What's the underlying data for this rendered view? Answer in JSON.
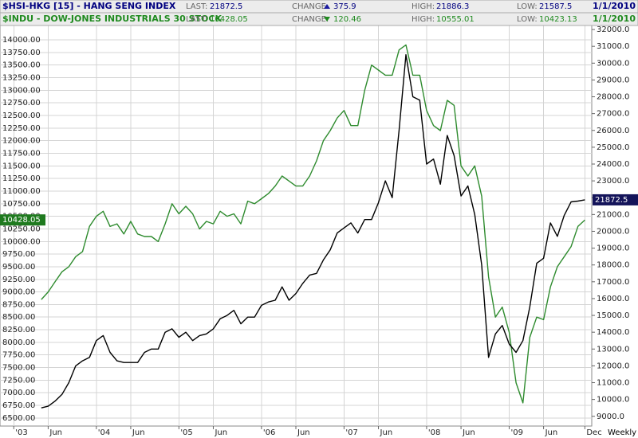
{
  "chart_data": {
    "type": "line",
    "frequency": "Weekly",
    "x": [
      "2003-05",
      "2003-06",
      "2003-07",
      "2003-08",
      "2003-09",
      "2003-10",
      "2003-11",
      "2003-12",
      "2004-01",
      "2004-02",
      "2004-03",
      "2004-04",
      "2004-05",
      "2004-06",
      "2004-07",
      "2004-08",
      "2004-09",
      "2004-10",
      "2004-11",
      "2004-12",
      "2005-01",
      "2005-02",
      "2005-03",
      "2005-04",
      "2005-05",
      "2005-06",
      "2005-07",
      "2005-08",
      "2005-09",
      "2005-10",
      "2005-11",
      "2005-12",
      "2006-01",
      "2006-02",
      "2006-03",
      "2006-04",
      "2006-05",
      "2006-06",
      "2006-07",
      "2006-08",
      "2006-09",
      "2006-10",
      "2006-11",
      "2006-12",
      "2007-01",
      "2007-02",
      "2007-03",
      "2007-04",
      "2007-05",
      "2007-06",
      "2007-07",
      "2007-08",
      "2007-09",
      "2007-10",
      "2007-11",
      "2007-12",
      "2008-01",
      "2008-02",
      "2008-03",
      "2008-04",
      "2008-05",
      "2008-06",
      "2008-07",
      "2008-08",
      "2008-09",
      "2008-10",
      "2008-11",
      "2008-12",
      "2009-01",
      "2009-02",
      "2009-03",
      "2009-04",
      "2009-05",
      "2009-06",
      "2009-07",
      "2009-08",
      "2009-09",
      "2009-10",
      "2009-11",
      "2009-12"
    ],
    "xlim": [
      "2002-11",
      "2010-01"
    ],
    "xticks": [
      {
        "value": "2003-01",
        "label": "'03"
      },
      {
        "value": "2003-06",
        "label": "Jun"
      },
      {
        "value": "2004-01",
        "label": "'04"
      },
      {
        "value": "2004-06",
        "label": "Jun"
      },
      {
        "value": "2005-01",
        "label": "'05"
      },
      {
        "value": "2005-06",
        "label": "Jun"
      },
      {
        "value": "2006-01",
        "label": "'06"
      },
      {
        "value": "2006-06",
        "label": "Jun"
      },
      {
        "value": "2007-01",
        "label": "'07"
      },
      {
        "value": "2007-06",
        "label": "Jun"
      },
      {
        "value": "2008-01",
        "label": "'08"
      },
      {
        "value": "2008-06",
        "label": "Jun"
      },
      {
        "value": "2009-01",
        "label": "'09"
      },
      {
        "value": "2009-06",
        "label": "Jun"
      },
      {
        "value": "2009-12",
        "label": "Dec"
      }
    ],
    "ylim": [
      6340,
      14285
    ],
    "yticks": [
      {
        "value": 6500,
        "label": "6500.00"
      },
      {
        "value": 6750,
        "label": "6750.00"
      },
      {
        "value": 7000,
        "label": "7000.00"
      },
      {
        "value": 7250,
        "label": "7250.00"
      },
      {
        "value": 7500,
        "label": "7500.00"
      },
      {
        "value": 7750,
        "label": "7750.00"
      },
      {
        "value": 8000,
        "label": "8000.00"
      },
      {
        "value": 8250,
        "label": "8250.00"
      },
      {
        "value": 8500,
        "label": "8500.00"
      },
      {
        "value": 8750,
        "label": "8750.00"
      },
      {
        "value": 9000,
        "label": "9000.00"
      },
      {
        "value": 9250,
        "label": "9250.00"
      },
      {
        "value": 9500,
        "label": "9500.00"
      },
      {
        "value": 9750,
        "label": "9750.00"
      },
      {
        "value": 10000,
        "label": "10000.00"
      },
      {
        "value": 10250,
        "label": "10250.00"
      },
      {
        "value": 10500,
        "label": "10500.00"
      },
      {
        "value": 10750,
        "label": "10750.00"
      },
      {
        "value": 11000,
        "label": "11000.00"
      },
      {
        "value": 11250,
        "label": "11250.00"
      },
      {
        "value": 11500,
        "label": "11500.00"
      },
      {
        "value": 11750,
        "label": "11750.00"
      },
      {
        "value": 12000,
        "label": "12000.00"
      },
      {
        "value": 12250,
        "label": "12250.00"
      },
      {
        "value": 12500,
        "label": "12500.00"
      },
      {
        "value": 12750,
        "label": "12750.00"
      },
      {
        "value": 13000,
        "label": "13000.00"
      },
      {
        "value": 13250,
        "label": "13250.00"
      },
      {
        "value": 13500,
        "label": "13500.00"
      },
      {
        "value": 13750,
        "label": "13750.00"
      },
      {
        "value": 14000,
        "label": "14000.00"
      }
    ],
    "y2lim": [
      8420,
      32240
    ],
    "y2ticks": [
      {
        "value": 9000,
        "label": "9000.0"
      },
      {
        "value": 10000,
        "label": "10000.0"
      },
      {
        "value": 11000,
        "label": "11000.0"
      },
      {
        "value": 12000,
        "label": "12000.0"
      },
      {
        "value": 13000,
        "label": "13000.0"
      },
      {
        "value": 14000,
        "label": "14000.0"
      },
      {
        "value": 15000,
        "label": "15000.0"
      },
      {
        "value": 16000,
        "label": "16000.0"
      },
      {
        "value": 17000,
        "label": "17000.0"
      },
      {
        "value": 18000,
        "label": "18000.0"
      },
      {
        "value": 19000,
        "label": "19000.0"
      },
      {
        "value": 20000,
        "label": "20000.0"
      },
      {
        "value": 21000,
        "label": "21000.0"
      },
      {
        "value": 22000,
        "label": "22000.0"
      },
      {
        "value": 23000,
        "label": "23000.0"
      },
      {
        "value": 24000,
        "label": "24000.0"
      },
      {
        "value": 25000,
        "label": "25000.0"
      },
      {
        "value": 26000,
        "label": "26000.0"
      },
      {
        "value": 27000,
        "label": "27000.0"
      },
      {
        "value": 28000,
        "label": "28000.0"
      },
      {
        "value": 29000,
        "label": "29000.0"
      },
      {
        "value": 30000,
        "label": "30000.0"
      },
      {
        "value": 31000,
        "label": "31000.0"
      },
      {
        "value": 32000,
        "label": "32000.0"
      }
    ],
    "grid": true,
    "series": [
      {
        "name": "$HSI-HKG [15] - HANG SENG INDEX",
        "color": "#000000",
        "axis": "y2",
        "tag_color": "#14145a",
        "quote": {
          "last_label": "LAST:",
          "last": 21872.5,
          "change_label": "CHANGE:",
          "change": 375.9,
          "high_label": "HIGH:",
          "high": 21886.3,
          "low_label": "LOW:",
          "low": 21587.5,
          "date": "1/1/2010"
        },
        "values": [
          9500,
          9600,
          9900,
          10300,
          11000,
          12000,
          12300,
          12500,
          13500,
          13800,
          12800,
          12300,
          12200,
          12200,
          12200,
          12800,
          13000,
          13000,
          14000,
          14200,
          13700,
          14000,
          13500,
          13800,
          13900,
          14200,
          14800,
          15000,
          15300,
          14500,
          14900,
          14900,
          15600,
          15800,
          15900,
          16700,
          15900,
          16300,
          16900,
          17400,
          17500,
          18300,
          18900,
          19900,
          20200,
          20500,
          19900,
          20700,
          20700,
          21700,
          23000,
          22000,
          26000,
          30500,
          28000,
          27800,
          24000,
          24300,
          22800,
          25700,
          24500,
          22100,
          22700,
          21000,
          18000,
          12500,
          13900,
          14400,
          13300,
          12800,
          13500,
          15500,
          18100,
          18400,
          20500,
          19700,
          20950,
          21750,
          21800,
          21872.5
        ]
      },
      {
        "name": "$INDU - DOW-JONES INDUSTRIALS 30 STOCK",
        "color": "#2e8b2e",
        "tag_color": "#1f7a1f",
        "quote": {
          "last_label": "LAST:",
          "last": 10428.05,
          "change_label": "CHANGE:",
          "change": 120.46,
          "high_label": "HIGH:",
          "high": 10555.01,
          "low_label": "LOW:",
          "low": 10423.13,
          "date": "1/1/2010"
        },
        "values": [
          8850,
          9000,
          9200,
          9400,
          9500,
          9700,
          9800,
          10300,
          10500,
          10600,
          10300,
          10350,
          10150,
          10400,
          10150,
          10100,
          10100,
          10000,
          10350,
          10750,
          10550,
          10700,
          10550,
          10250,
          10400,
          10350,
          10600,
          10500,
          10550,
          10350,
          10800,
          10750,
          10850,
          10950,
          11100,
          11300,
          11200,
          11100,
          11100,
          11300,
          11600,
          12000,
          12200,
          12450,
          12600,
          12300,
          12300,
          13000,
          13500,
          13400,
          13300,
          13300,
          13800,
          13900,
          13300,
          13300,
          12600,
          12300,
          12200,
          12800,
          12700,
          11500,
          11300,
          11500,
          10900,
          9300,
          8500,
          8700,
          8200,
          7200,
          6800,
          8100,
          8500,
          8450,
          9100,
          9500,
          9700,
          9900,
          10300,
          10428.05
        ]
      }
    ]
  }
}
